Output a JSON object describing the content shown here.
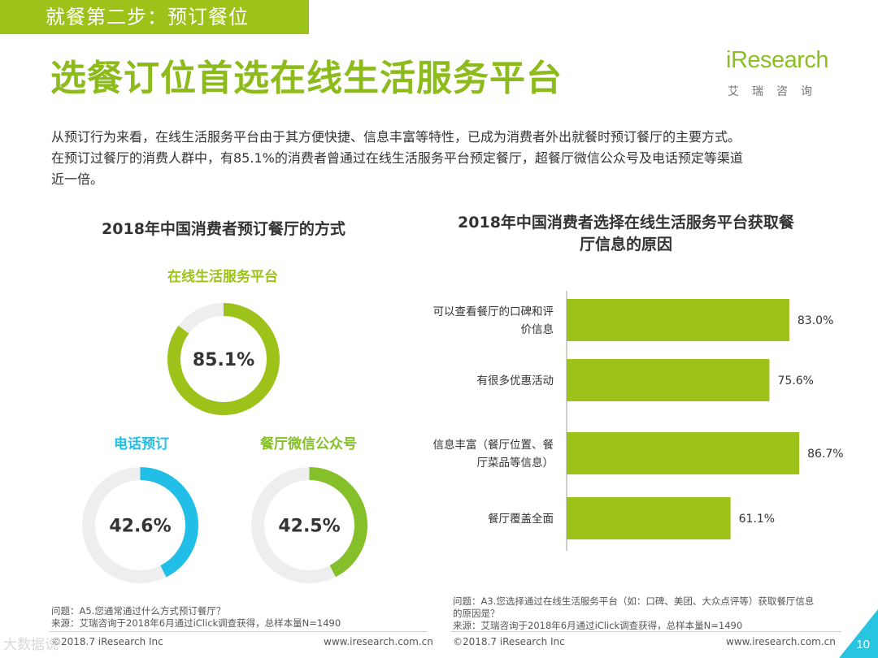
{
  "header": {
    "step_tag": "就餐第二步：预订餐位",
    "title": "选餐订位首选在线生活服务平台"
  },
  "logo": {
    "word": "iResearch",
    "cn": "艾瑞咨询"
  },
  "intro": {
    "line1": "从预订行为来看，在线生活服务平台由于其方便快捷、信息丰富等特性，已成为消费者外出就餐时预订餐厅的主要方式。",
    "line2": "在预订过餐厅的消费人群中，有85.1%的消费者曾通过在线生活服务平台预定餐厅，超餐厅微信公众号及电话预定等渠道",
    "line3": "近一倍。"
  },
  "colors": {
    "green": "#9dc31b",
    "blue": "#21bfe8",
    "track": "#eeeeee",
    "bar": "#9dc31b",
    "corner": "#29c4df"
  },
  "chart_data": [
    {
      "type": "pie",
      "title": "2018年中国消费者预订餐厅的方式",
      "items": [
        {
          "label": "在线生活服务平台",
          "value": 85.1,
          "value_label": "85.1%",
          "color": "#9dc31b"
        },
        {
          "label": "电话预订",
          "value": 42.6,
          "value_label": "42.6%",
          "color": "#21bfe8"
        },
        {
          "label": "餐厅微信公众号",
          "value": 42.5,
          "value_label": "42.5%",
          "color": "#85bf2a"
        }
      ]
    },
    {
      "type": "bar",
      "orientation": "horizontal",
      "title_line1": "2018年中国消费者选择在线生活服务平台获取餐",
      "title_line2": "厅信息的原因",
      "xlim": [
        0,
        100
      ],
      "categories": [
        [
          "可以查看餐厅的口碑和评",
          "价信息"
        ],
        [
          "有很多优惠活动"
        ],
        [
          "信息丰富（餐厅位置、餐",
          "厅菜品等信息）"
        ],
        [
          "餐厅覆盖全面"
        ]
      ],
      "values": [
        83.0,
        75.6,
        86.7,
        61.1
      ],
      "value_labels": [
        "83.0%",
        "75.6%",
        "86.7%",
        "61.1%"
      ]
    }
  ],
  "notes": {
    "left_q": "问题：A5.您通常通过什么方式预订餐厅？",
    "left_src": "来源：艾瑞咨询于2018年6月通过iClick调查获得，总样本量N=1490",
    "right_q1": "问题：A3.您选择通过在线生活服务平台（如：口碑、美团、大众点评等）获取餐厅信息",
    "right_q2": "的原因是？",
    "right_src": "来源：艾瑞咨询于2018年6月通过iClick调查获得，总样本量N=1490"
  },
  "footer": {
    "left_copy": "©2018.7 iResearch Inc",
    "left_url": "www.iresearch.com.cn",
    "right_copy": "©2018.7 iResearch Inc",
    "right_url": "www.iresearch.com.cn",
    "page": "10",
    "watermark": "大数据说"
  }
}
